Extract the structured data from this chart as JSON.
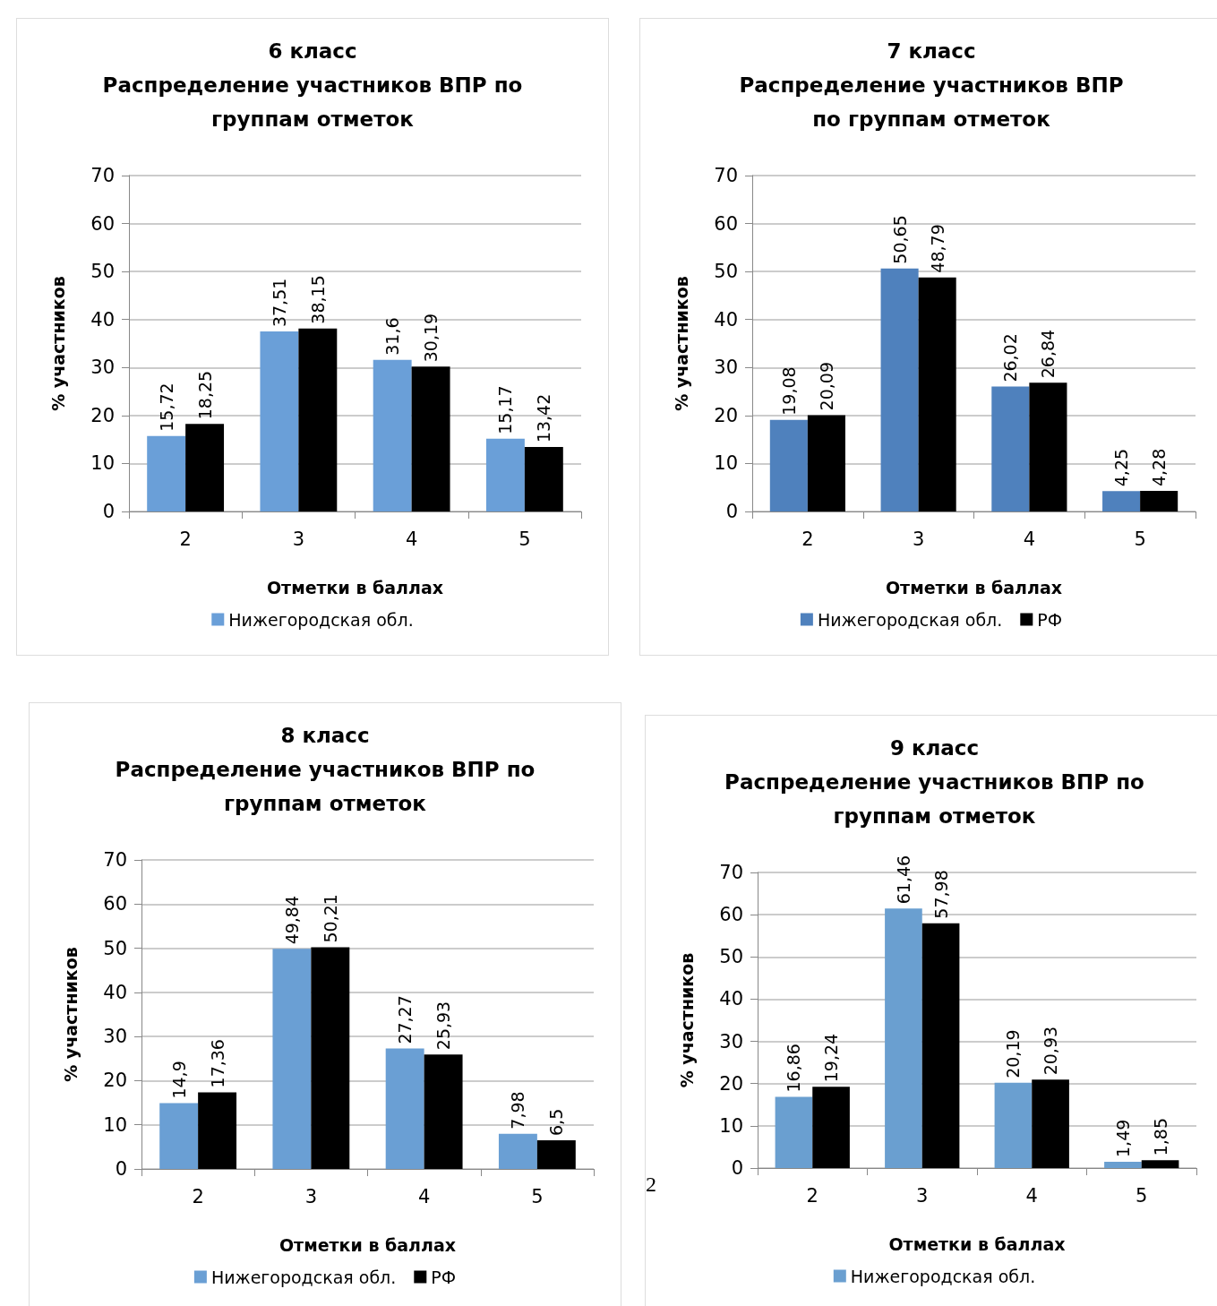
{
  "chart_data": [
    {
      "type": "bar",
      "title": "6 класс\nРаспределение участников ВПР по\nгруппам отметок",
      "xlabel": "Отметки в баллах",
      "ylabel": "% участников",
      "categories": [
        "2",
        "3",
        "4",
        "5"
      ],
      "ylim": [
        0,
        70
      ],
      "yticks": [
        0,
        10,
        20,
        30,
        40,
        50,
        60,
        70
      ],
      "grid": "y",
      "legend": "bottom",
      "series": [
        {
          "name": "Нижегородская обл.",
          "color": "#6a9fd8",
          "values": [
            15.72,
            37.51,
            31.6,
            15.17
          ],
          "value_labels": [
            "15,72",
            "37,51",
            "31,6",
            "15,17"
          ]
        },
        {
          "color": "#000000",
          "values": [
            18.25,
            38.15,
            30.19,
            13.42
          ],
          "value_labels": [
            "18,25",
            "38,15",
            "30,19",
            "13,42"
          ]
        }
      ]
    },
    {
      "type": "bar",
      "title": "7 класс\nРаспределение участников ВПР\nпо группам отметок",
      "xlabel": "Отметки в баллах",
      "ylabel": "% участников",
      "categories": [
        "2",
        "3",
        "4",
        "5"
      ],
      "ylim": [
        0,
        70
      ],
      "yticks": [
        0,
        10,
        20,
        30,
        40,
        50,
        60,
        70
      ],
      "grid": "y",
      "legend": "bottom",
      "series": [
        {
          "name": "Нижегородская обл.",
          "color": "#4f81bd",
          "values": [
            19.08,
            50.65,
            26.02,
            4.25
          ],
          "value_labels": [
            "19,08",
            "50,65",
            "26,02",
            "4,25"
          ]
        },
        {
          "name": "РФ",
          "color": "#000000",
          "values": [
            20.09,
            48.79,
            26.84,
            4.28
          ],
          "value_labels": [
            "20,09",
            "48,79",
            "26,84",
            "4,28"
          ]
        }
      ]
    },
    {
      "type": "bar",
      "title": "8 класс\nРаспределение участников ВПР по\nгруппам отметок",
      "xlabel": "Отметки в баллах",
      "ylabel": "% участников",
      "categories": [
        "2",
        "3",
        "4",
        "5"
      ],
      "ylim": [
        0,
        70
      ],
      "yticks": [
        0,
        10,
        20,
        30,
        40,
        50,
        60,
        70
      ],
      "grid": "y",
      "legend": "bottom",
      "series": [
        {
          "name": "Нижегородская обл.",
          "color": "#6a9fd4",
          "values": [
            14.9,
            49.84,
            27.27,
            7.98
          ],
          "value_labels": [
            "14,9",
            "49,84",
            "27,27",
            "7,98"
          ]
        },
        {
          "name": "РФ",
          "color": "#000000",
          "values": [
            17.36,
            50.21,
            25.93,
            6.5
          ],
          "value_labels": [
            "17,36",
            "50,21",
            "25,93",
            "6,5"
          ]
        }
      ]
    },
    {
      "type": "bar",
      "title": "9 класс\nРаспределение участников ВПР по\nгруппам отметок",
      "xlabel": "Отметки в баллах",
      "ylabel": "% участников",
      "categories": [
        "2",
        "3",
        "4",
        "5"
      ],
      "ylim": [
        0,
        70
      ],
      "yticks": [
        0,
        10,
        20,
        30,
        40,
        50,
        60,
        70
      ],
      "grid": "y",
      "legend": "bottom",
      "annotations": [
        "2"
      ],
      "series": [
        {
          "name": "Нижегородская обл.",
          "color": "#6a9fd0",
          "values": [
            16.86,
            61.46,
            20.19,
            1.49
          ],
          "value_labels": [
            "16,86",
            "61,46",
            "20,19",
            "1,49"
          ]
        },
        {
          "color": "#000000",
          "values": [
            19.24,
            57.98,
            20.93,
            1.85
          ],
          "value_labels": [
            "19,24",
            "57,98",
            "20,93",
            "1,85"
          ]
        }
      ]
    }
  ]
}
